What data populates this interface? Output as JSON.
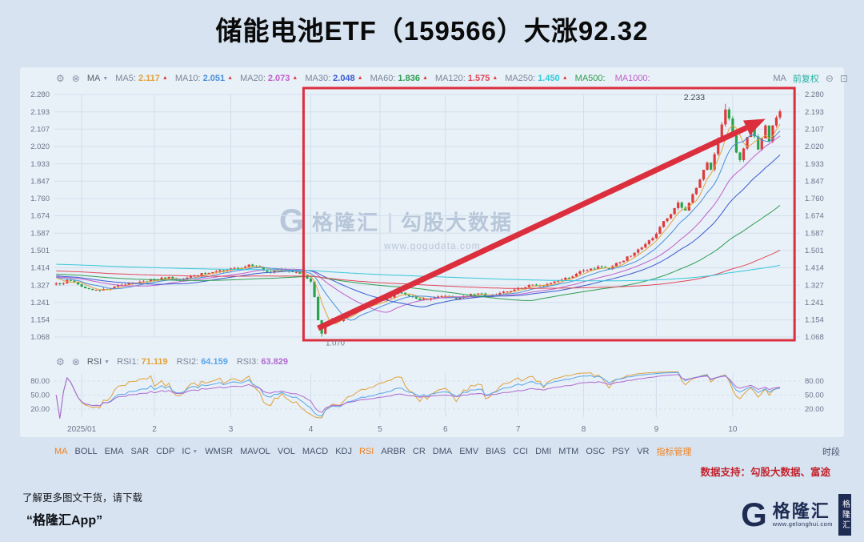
{
  "page": {
    "title": "储能电池ETF（159566）大涨92.32",
    "support_text": "数据支持：勾股大数据、富途",
    "footer_line1": "了解更多图文干货，请下载",
    "footer_line2": "“格隆汇App”",
    "logo": {
      "mark": "G",
      "name": "格隆汇",
      "url": "www.gelonghui.com",
      "vertical_name": "格隆汇"
    }
  },
  "watermark": {
    "mark": "G",
    "brand": "格隆汇",
    "divider": "|",
    "product": "勾股大数据",
    "url": "www.gogudata.com"
  },
  "main_toolbar": {
    "dropdown_label": "MA",
    "right_label": "MA",
    "adjust_label": "前复权",
    "items": [
      {
        "label": "MA5:",
        "value": "2.117",
        "color": "#e2a23b",
        "arrow": true
      },
      {
        "label": "MA10:",
        "value": "2.051",
        "color": "#4a8fd8",
        "arrow": true
      },
      {
        "label": "MA20:",
        "value": "2.073",
        "color": "#c060c8",
        "arrow": true
      },
      {
        "label": "MA30:",
        "value": "2.048",
        "color": "#3b5bd0",
        "arrow": true
      },
      {
        "label": "MA60:",
        "value": "1.836",
        "color": "#2e9e4f",
        "arrow": true
      },
      {
        "label": "MA120:",
        "value": "1.575",
        "color": "#e04858",
        "arrow": true
      },
      {
        "label": "MA250:",
        "value": "1.450",
        "color": "#35c8d8",
        "arrow": true
      },
      {
        "label": "MA500:",
        "value": "",
        "color": "#2e9e4f",
        "label_color": "#2e9e4f",
        "arrow": false
      },
      {
        "label": "MA1000:",
        "value": "",
        "color": "#c060c8",
        "label_color": "#c060c8",
        "arrow": false
      }
    ]
  },
  "rsi_toolbar": {
    "dropdown_label": "RSI",
    "items": [
      {
        "label": "RSI1:",
        "value": "71.119",
        "color": "#e2a23b"
      },
      {
        "label": "RSI2:",
        "value": "64.159",
        "color": "#58a6e8"
      },
      {
        "label": "RSI3:",
        "value": "63.829",
        "color": "#b06ad0"
      }
    ]
  },
  "tabs": {
    "active_color": "#f0811d",
    "right_label": "时段",
    "items": [
      {
        "label": "MA",
        "active": true
      },
      {
        "label": "BOLL"
      },
      {
        "label": "EMA"
      },
      {
        "label": "SAR"
      },
      {
        "label": "CDP"
      },
      {
        "label": "IC",
        "chevron": true
      },
      {
        "label": "WMSR"
      },
      {
        "label": "MAVOL"
      },
      {
        "label": "VOL"
      },
      {
        "label": "MACD"
      },
      {
        "label": "KDJ"
      },
      {
        "label": "RSI",
        "active": true
      },
      {
        "label": "ARBR"
      },
      {
        "label": "CR"
      },
      {
        "label": "DMA"
      },
      {
        "label": "EMV"
      },
      {
        "label": "BIAS"
      },
      {
        "label": "CCI"
      },
      {
        "label": "DMI"
      },
      {
        "label": "MTM"
      },
      {
        "label": "OSC"
      },
      {
        "label": "PSY"
      },
      {
        "label": "VR"
      },
      {
        "label": "指标管理",
        "active": true
      }
    ]
  },
  "chart_data": {
    "type": "candlestick",
    "title": "储能电池ETF（159566）大涨92.32",
    "symbol": "储能电池ETF",
    "code": "159566",
    "change_text": "大涨92.32",
    "num_candles": 200,
    "seed": 7,
    "noise": 0.005,
    "price_axis": {
      "max": 2.28,
      "min": 1.068,
      "labels": [
        "2.280",
        "2.193",
        "2.107",
        "2.020",
        "1.933",
        "1.847",
        "1.760",
        "1.674",
        "1.587",
        "1.501",
        "1.414",
        "1.327",
        "1.241",
        "1.154",
        "1.068"
      ]
    },
    "month_ticks": [
      {
        "label": "2025/01",
        "index": 7
      },
      {
        "label": "2",
        "index": 27
      },
      {
        "label": "3",
        "index": 48
      },
      {
        "label": "4",
        "index": 70
      },
      {
        "label": "5",
        "index": 89
      },
      {
        "label": "6",
        "index": 107
      },
      {
        "label": "7",
        "index": 127
      },
      {
        "label": "8",
        "index": 145
      },
      {
        "label": "9",
        "index": 165
      },
      {
        "label": "10",
        "index": 186
      }
    ],
    "close_anchors": [
      [
        0,
        1.336
      ],
      [
        4,
        1.35
      ],
      [
        8,
        1.312
      ],
      [
        12,
        1.3
      ],
      [
        16,
        1.32
      ],
      [
        20,
        1.338
      ],
      [
        24,
        1.346
      ],
      [
        28,
        1.356
      ],
      [
        31,
        1.368
      ],
      [
        34,
        1.352
      ],
      [
        38,
        1.376
      ],
      [
        42,
        1.388
      ],
      [
        46,
        1.398
      ],
      [
        50,
        1.412
      ],
      [
        53,
        1.43
      ],
      [
        56,
        1.415
      ],
      [
        59,
        1.392
      ],
      [
        62,
        1.406
      ],
      [
        65,
        1.392
      ],
      [
        68,
        1.376
      ],
      [
        69,
        1.36
      ],
      [
        70,
        1.345
      ],
      [
        71,
        1.268
      ],
      [
        72,
        1.152
      ],
      [
        73,
        1.085
      ],
      [
        74,
        1.128
      ],
      [
        76,
        1.162
      ],
      [
        78,
        1.148
      ],
      [
        80,
        1.185
      ],
      [
        83,
        1.212
      ],
      [
        86,
        1.23
      ],
      [
        88,
        1.242
      ],
      [
        91,
        1.262
      ],
      [
        94,
        1.29
      ],
      [
        97,
        1.272
      ],
      [
        100,
        1.252
      ],
      [
        103,
        1.262
      ],
      [
        106,
        1.272
      ],
      [
        110,
        1.258
      ],
      [
        113,
        1.272
      ],
      [
        116,
        1.286
      ],
      [
        119,
        1.272
      ],
      [
        122,
        1.288
      ],
      [
        125,
        1.298
      ],
      [
        128,
        1.31
      ],
      [
        131,
        1.33
      ],
      [
        134,
        1.322
      ],
      [
        137,
        1.346
      ],
      [
        140,
        1.364
      ],
      [
        143,
        1.384
      ],
      [
        146,
        1.402
      ],
      [
        149,
        1.42
      ],
      [
        152,
        1.408
      ],
      [
        155,
        1.442
      ],
      [
        158,
        1.474
      ],
      [
        161,
        1.515
      ],
      [
        164,
        1.562
      ],
      [
        166,
        1.618
      ],
      [
        169,
        1.682
      ],
      [
        171,
        1.74
      ],
      [
        173,
        1.7
      ],
      [
        175,
        1.782
      ],
      [
        177,
        1.855
      ],
      [
        179,
        1.94
      ],
      [
        180,
        1.905
      ],
      [
        181,
        1.982
      ],
      [
        182,
        2.06
      ],
      [
        183,
        2.13
      ],
      [
        184,
        2.205
      ],
      [
        185,
        2.16
      ],
      [
        186,
        2.075
      ],
      [
        187,
        1.99
      ],
      [
        188,
        1.952
      ],
      [
        189,
        2.01
      ],
      [
        190,
        2.068
      ],
      [
        191,
        2.118
      ],
      [
        192,
        2.07
      ],
      [
        193,
        2.005
      ],
      [
        194,
        2.06
      ],
      [
        195,
        2.125
      ],
      [
        196,
        2.045
      ],
      [
        197,
        2.125
      ],
      [
        198,
        2.165
      ],
      [
        199,
        2.196
      ]
    ],
    "key_high": {
      "index": 184,
      "value": 2.233,
      "label": "2.233"
    },
    "key_low": {
      "index": 73,
      "value": 1.07,
      "label": "1.070"
    },
    "prehistory": {
      "count": 260,
      "start": 1.5,
      "end": 1.37,
      "noise": 0.012
    },
    "ma_lines": [
      {
        "period": 5,
        "color": "#e2a23b"
      },
      {
        "period": 10,
        "color": "#4a8fd8"
      },
      {
        "period": 20,
        "color": "#c060c8"
      },
      {
        "period": 30,
        "color": "#3b5bd0"
      },
      {
        "period": 60,
        "color": "#2e9e4f"
      },
      {
        "period": 120,
        "color": "#e04858"
      },
      {
        "period": 250,
        "color": "#35c8d8"
      }
    ],
    "rsi": {
      "axis_labels": [
        "80.00",
        "50.00",
        "20.00"
      ],
      "axis_values": [
        80,
        50,
        20
      ],
      "periods": [
        {
          "period": 6,
          "color": "#e2a23b"
        },
        {
          "period": 12,
          "color": "#58a6e8"
        },
        {
          "period": 24,
          "color": "#b06ad0"
        }
      ],
      "values_shown": [
        "71.119",
        "64.159",
        "63.829"
      ]
    },
    "annotations": {
      "color": "#dc2f3e",
      "box": {
        "i1": 68,
        "i2": 203,
        "p1": 1.052,
        "p2": 2.312
      },
      "arrow": {
        "i1": 72,
        "p1": 1.112,
        "i2": 195,
        "p2": 2.158
      }
    },
    "colors": {
      "up": "#dd3b3a",
      "down": "#28a34c",
      "grid": "#d2dfec",
      "axis_text": "#69778a"
    }
  }
}
